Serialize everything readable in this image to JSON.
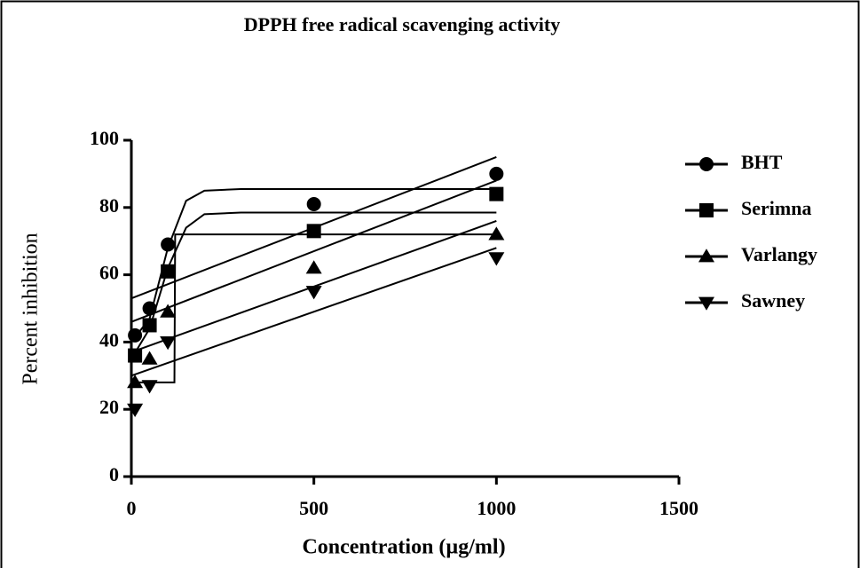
{
  "chart_data": {
    "type": "scatter",
    "title": "DPPH free radical scavenging activity",
    "xlabel": "Concentration (µg/ml)",
    "ylabel": "Percent inhibition",
    "xlim": [
      0,
      1500
    ],
    "xticks": [
      0,
      500,
      1000,
      1500
    ],
    "ylim": [
      0,
      100
    ],
    "yticks": [
      0,
      20,
      40,
      60,
      80,
      100
    ],
    "x": [
      10,
      50,
      100,
      500,
      1000
    ],
    "series": [
      {
        "name": "BHT",
        "color": "#000000",
        "marker": "circle",
        "values": [
          42,
          50,
          69,
          81,
          90
        ]
      },
      {
        "name": "Serimna",
        "color": "#000000",
        "marker": "square",
        "values": [
          36,
          45,
          61,
          73,
          84
        ]
      },
      {
        "name": "Varlangy",
        "color": "#000000",
        "marker": "triangle",
        "values": [
          28,
          35,
          49,
          62,
          72
        ]
      },
      {
        "name": "Sawney",
        "color": "#000000",
        "marker": "triangle-down",
        "values": [
          20,
          27,
          40,
          55,
          65
        ]
      }
    ],
    "fit_lines": [
      {
        "x": [
          0,
          1000
        ],
        "values": [
          53,
          95
        ]
      },
      {
        "x": [
          0,
          1000
        ],
        "values": [
          46,
          88
        ]
      },
      {
        "x": [
          0,
          1000
        ],
        "values": [
          37,
          76
        ]
      },
      {
        "x": [
          0,
          1000
        ],
        "values": [
          30,
          68
        ]
      },
      {
        "x": [
          0,
          50,
          100,
          150,
          200,
          300,
          1000
        ],
        "values": [
          40,
          47,
          68,
          82,
          85,
          85.5,
          85.5
        ]
      },
      {
        "x": [
          0,
          50,
          100,
          150,
          200,
          300,
          1000
        ],
        "values": [
          35,
          44,
          62,
          74,
          78,
          78.5,
          78.5
        ]
      },
      {
        "x": [
          0,
          118,
          120,
          1000
        ],
        "values": [
          28,
          28,
          72,
          72
        ]
      }
    ],
    "legend": "right",
    "grid": false
  }
}
